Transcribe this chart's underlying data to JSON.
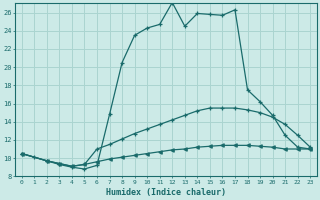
{
  "xlabel": "Humidex (Indice chaleur)",
  "bg_color": "#cceae7",
  "grid_color": "#aad4d0",
  "line_color": "#1a6b6b",
  "xlim": [
    -0.5,
    23.5
  ],
  "ylim": [
    8,
    27
  ],
  "xticks": [
    0,
    1,
    2,
    3,
    4,
    5,
    6,
    7,
    8,
    9,
    10,
    11,
    12,
    13,
    14,
    15,
    16,
    17,
    18,
    19,
    20,
    21,
    22,
    23
  ],
  "yticks": [
    8,
    10,
    12,
    14,
    16,
    18,
    20,
    22,
    24,
    26
  ],
  "curve1_x": [
    0,
    1,
    2,
    3,
    4,
    5,
    6,
    7,
    8,
    9,
    10,
    11,
    12,
    13,
    14,
    15,
    16,
    17,
    18,
    19,
    20,
    21,
    22,
    23
  ],
  "curve1_y": [
    10.5,
    10.1,
    9.7,
    9.3,
    9.0,
    8.8,
    9.2,
    14.8,
    20.5,
    23.5,
    24.3,
    24.7,
    27.1,
    24.5,
    25.9,
    25.8,
    25.7,
    26.3,
    17.5,
    16.2,
    14.7,
    12.5,
    11.2,
    11.0
  ],
  "curve2_x": [
    0,
    2,
    3,
    4,
    5,
    6,
    7,
    8,
    9,
    10,
    11,
    12,
    13,
    14,
    15,
    16,
    17,
    18,
    19,
    20,
    21,
    22,
    23
  ],
  "curve2_y": [
    10.5,
    9.7,
    9.4,
    9.1,
    9.3,
    11.0,
    11.5,
    12.1,
    12.7,
    13.2,
    13.7,
    14.2,
    14.7,
    15.2,
    15.5,
    15.5,
    15.5,
    15.3,
    15.0,
    14.5,
    13.7,
    12.5,
    11.2
  ],
  "curve3_x": [
    0,
    2,
    3,
    4,
    5,
    6,
    7,
    8,
    9,
    10,
    11,
    12,
    13,
    14,
    15,
    16,
    17,
    18,
    19,
    20,
    21,
    22,
    23
  ],
  "curve3_y": [
    10.5,
    9.7,
    9.4,
    9.1,
    9.3,
    9.6,
    9.9,
    10.1,
    10.3,
    10.5,
    10.7,
    10.9,
    11.0,
    11.2,
    11.3,
    11.4,
    11.4,
    11.4,
    11.3,
    11.2,
    11.0,
    11.0,
    11.0
  ]
}
